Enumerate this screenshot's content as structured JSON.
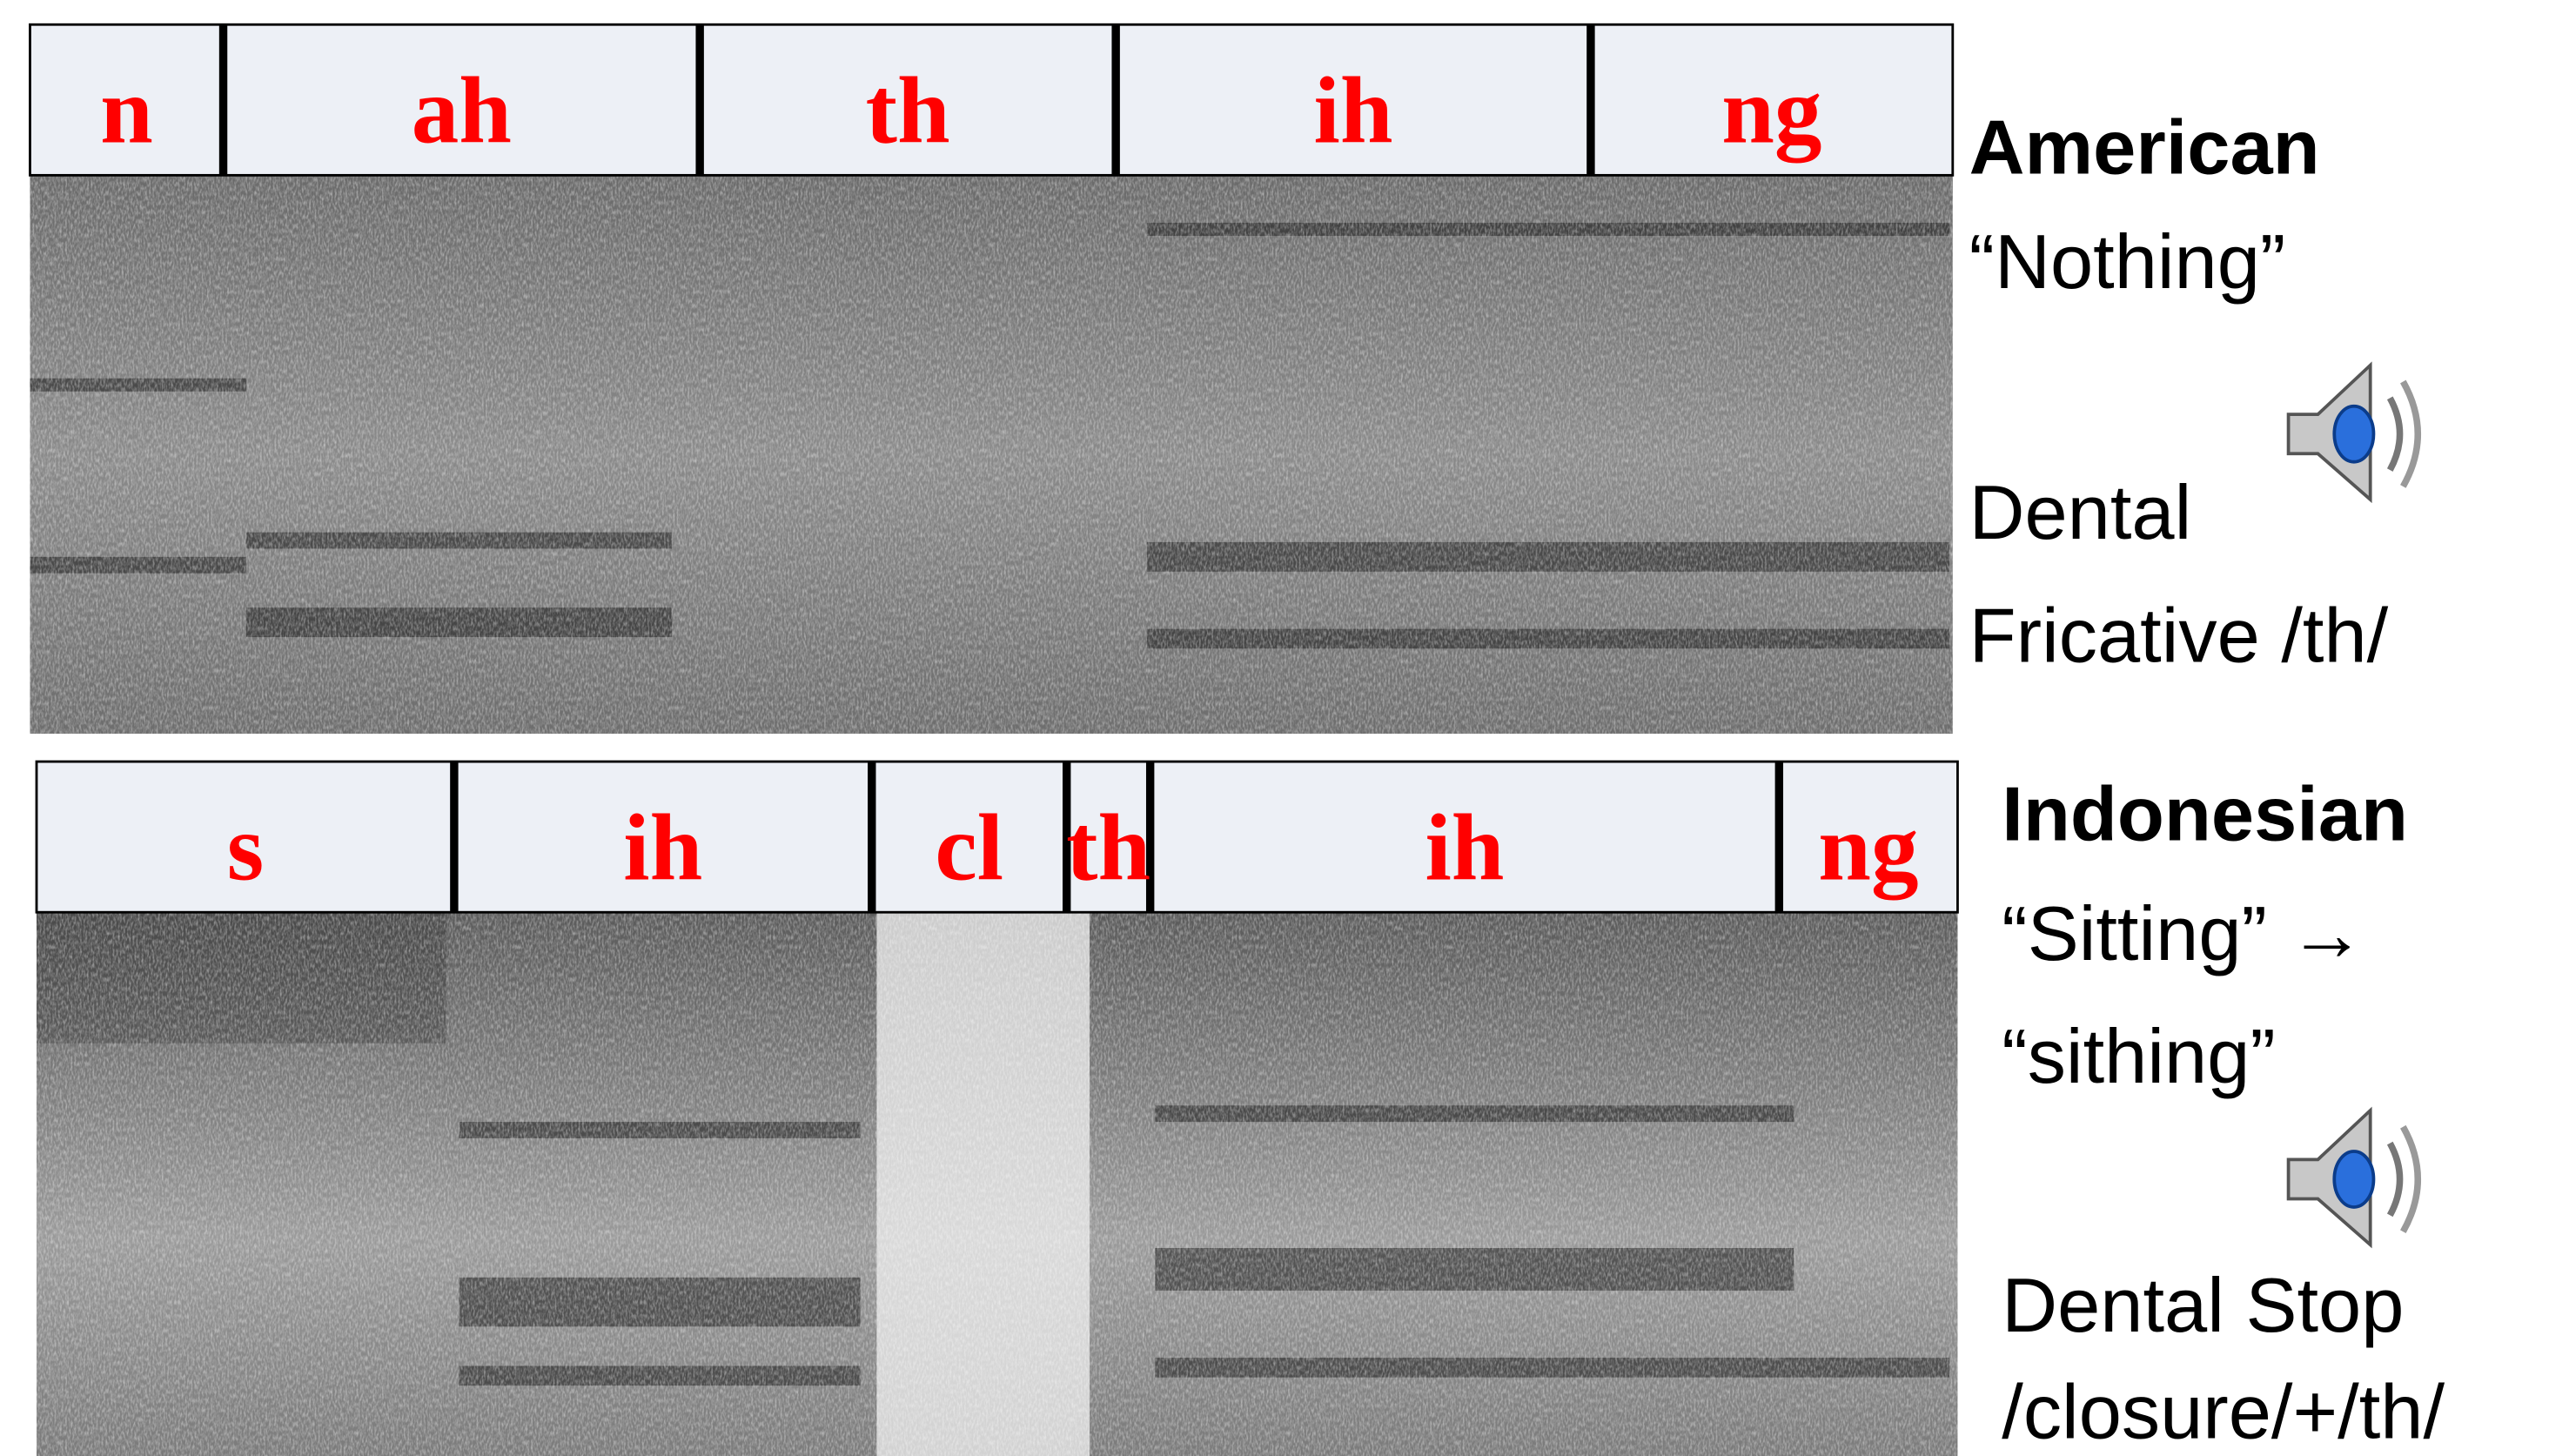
{
  "panels": [
    {
      "segments": [
        "n",
        "ah",
        "th",
        "ih",
        "ng"
      ],
      "caption": [
        "American",
        "“Nothing”",
        "Dental",
        "Fricative /th/"
      ]
    },
    {
      "segments": [
        "s",
        "ih",
        "cl",
        "th",
        "ih",
        "ng"
      ],
      "caption": [
        "Indonesian",
        "“Sitting” →",
        "“sithing”",
        "Dental Stop",
        "/closure/+/th/"
      ]
    }
  ]
}
